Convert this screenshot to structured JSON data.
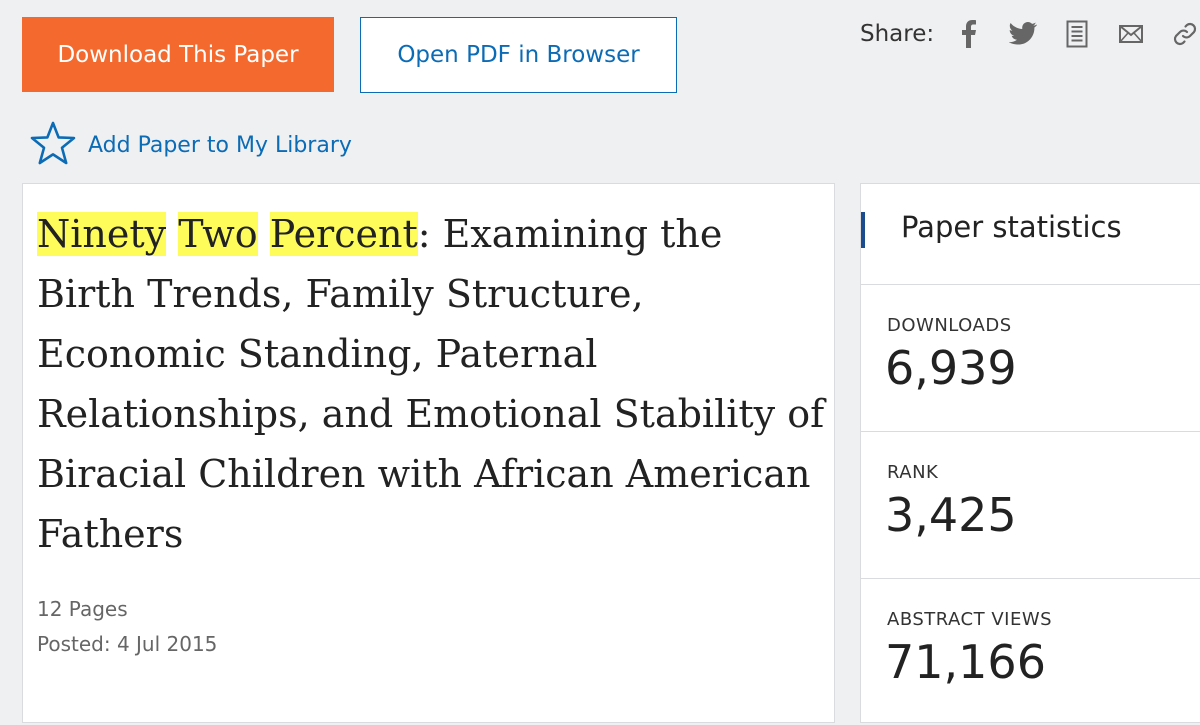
{
  "actions": {
    "download_label": "Download This Paper",
    "open_pdf_label": "Open PDF in Browser"
  },
  "share": {
    "label": "Share:",
    "icons": [
      "facebook-icon",
      "twitter-icon",
      "document-icon",
      "email-icon",
      "link-icon"
    ]
  },
  "library": {
    "label": "Add Paper to My Library",
    "icon": "star-icon"
  },
  "paper": {
    "title_highlight_1": "Ninety",
    "title_highlight_2": "Two",
    "title_highlight_3": "Percent",
    "title_rest": ": Examining the Birth Trends, Family Structure, Economic Standing, Paternal Relationships, and Emotional Stability of Biracial Children with African American Fathers",
    "pages": "12 Pages",
    "posted": "Posted: 4 Jul 2015"
  },
  "stats": {
    "title": "Paper statistics",
    "downloads_label": "DOWNLOADS",
    "downloads_value": "6,939",
    "rank_label": "RANK",
    "rank_value": "3,425",
    "views_label": "ABSTRACT VIEWS",
    "views_value": "71,166"
  },
  "colors": {
    "download_button": "#f46a2e",
    "link_blue": "#0c6bb5",
    "highlight": "#fdfc5b",
    "stats_accent": "#1a4c8e"
  }
}
